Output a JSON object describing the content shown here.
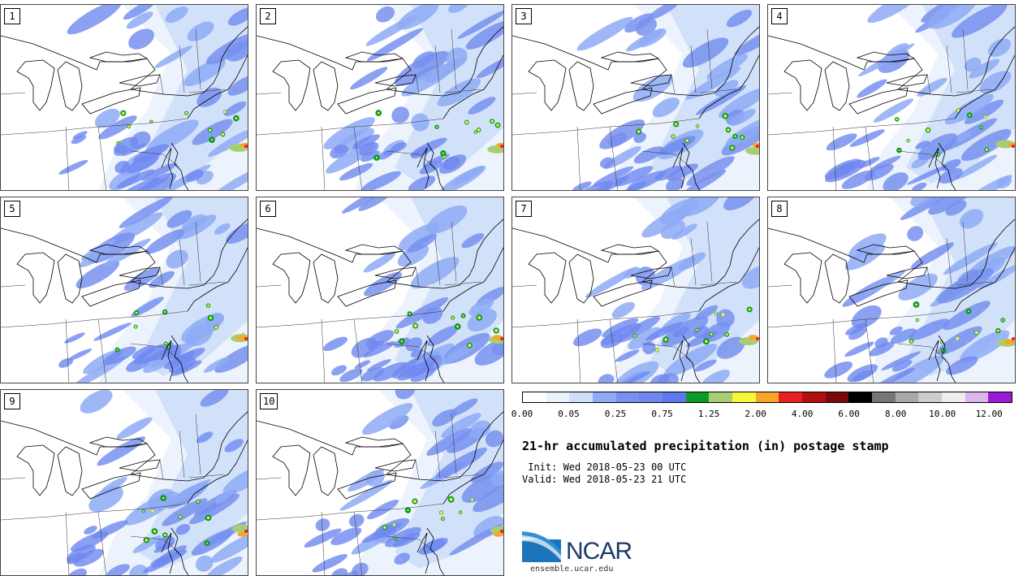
{
  "panels": [
    {
      "label": "1"
    },
    {
      "label": "2"
    },
    {
      "label": "3"
    },
    {
      "label": "4"
    },
    {
      "label": "5"
    },
    {
      "label": "6"
    },
    {
      "label": "7"
    },
    {
      "label": "8"
    },
    {
      "label": "9"
    },
    {
      "label": "10"
    }
  ],
  "colorbar": {
    "colors": [
      "#ffffff",
      "#eaf2fd",
      "#cfdffa",
      "#8eaaf4",
      "#7891ee",
      "#6f88f0",
      "#5e76ee",
      "#0a9b2a",
      "#a9cd72",
      "#f8f63a",
      "#f9a42a",
      "#e82020",
      "#b01010",
      "#7a0a0a",
      "#000000",
      "#777777",
      "#a8a8a8",
      "#cccccc",
      "#eeeeee",
      "#dcb4ee",
      "#9a1ad8"
    ],
    "tick_labels": [
      "0.00",
      "0.05",
      "0.25",
      "0.75",
      "1.25",
      "2.00",
      "4.00",
      "6.00",
      "8.00",
      "10.00",
      "12.00"
    ]
  },
  "title": "21-hr accumulated precipitation (in) postage stamp",
  "init": " Init: Wed 2018-05-23 00 UTC",
  "valid": "Valid: Wed 2018-05-23 21 UTC",
  "logo": {
    "text": "NCAR",
    "url": "ensemble.ucar.edu"
  }
}
